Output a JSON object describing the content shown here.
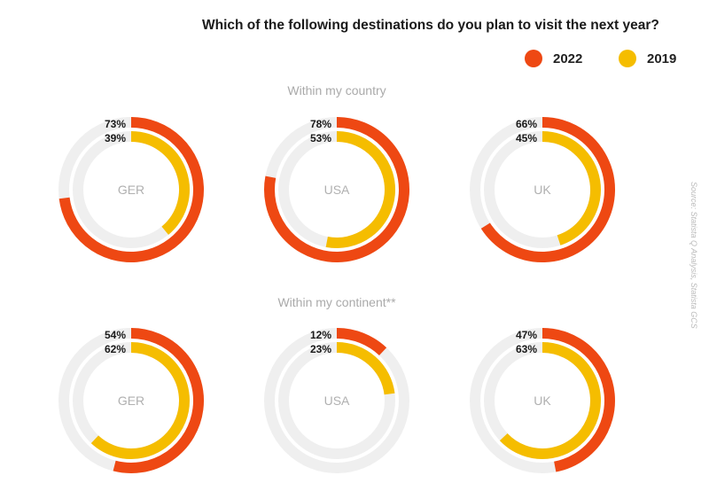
{
  "chart_data": {
    "type": "radial-bar",
    "title": "Which of the following destinations do you plan to visit the next year?",
    "series": [
      {
        "name": "2022",
        "color": "#ee4813"
      },
      {
        "name": "2019",
        "color": "#f5bd00"
      }
    ],
    "groups": [
      {
        "label": "Within my country",
        "charts": [
          {
            "category": "GER",
            "values": [
              73,
              39
            ]
          },
          {
            "category": "USA",
            "values": [
              78,
              53
            ]
          },
          {
            "category": "UK",
            "values": [
              66,
              45
            ]
          }
        ]
      },
      {
        "label": "Within my continent**",
        "charts": [
          {
            "category": "GER",
            "values": [
              54,
              62
            ]
          },
          {
            "category": "USA",
            "values": [
              12,
              23
            ]
          },
          {
            "category": "UK",
            "values": [
              47,
              63
            ]
          }
        ]
      }
    ],
    "value_suffix": "%",
    "source": "Source: Statista Q Analysis, Statista GCS"
  },
  "colors": {
    "track": "#efefef",
    "category_text": "#b0b0b0",
    "group_label": "#aaaaaa",
    "value_text": "#1a1a1a"
  }
}
